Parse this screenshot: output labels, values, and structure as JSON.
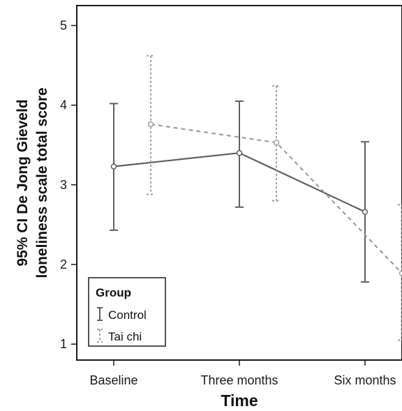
{
  "chart_data": {
    "type": "line",
    "xlabel": "Time",
    "ylabel_lines": [
      "95% CI De Jong Gieveld",
      "loneliness scale total score"
    ],
    "categories": [
      "Baseline",
      "Three months",
      "Six months"
    ],
    "y_ticks": [
      1,
      2,
      3,
      4,
      5
    ],
    "ylim": [
      0.8,
      5.25
    ],
    "grid": false,
    "legend": {
      "title": "Group",
      "position": "bottom-left"
    },
    "series": [
      {
        "name": "Control",
        "color": "#5f5f5f",
        "style": "solid",
        "mean": [
          3.23,
          3.4,
          2.66
        ],
        "ci_lower": [
          2.43,
          2.72,
          1.78
        ],
        "ci_upper": [
          4.02,
          4.05,
          3.54
        ]
      },
      {
        "name": "Tai chi",
        "color": "#9e9e9e",
        "style": "dashed",
        "mean": [
          3.76,
          3.53,
          1.89
        ],
        "ci_lower": [
          2.88,
          2.8,
          1.05
        ],
        "ci_upper": [
          4.62,
          4.24,
          2.75
        ]
      }
    ]
  }
}
